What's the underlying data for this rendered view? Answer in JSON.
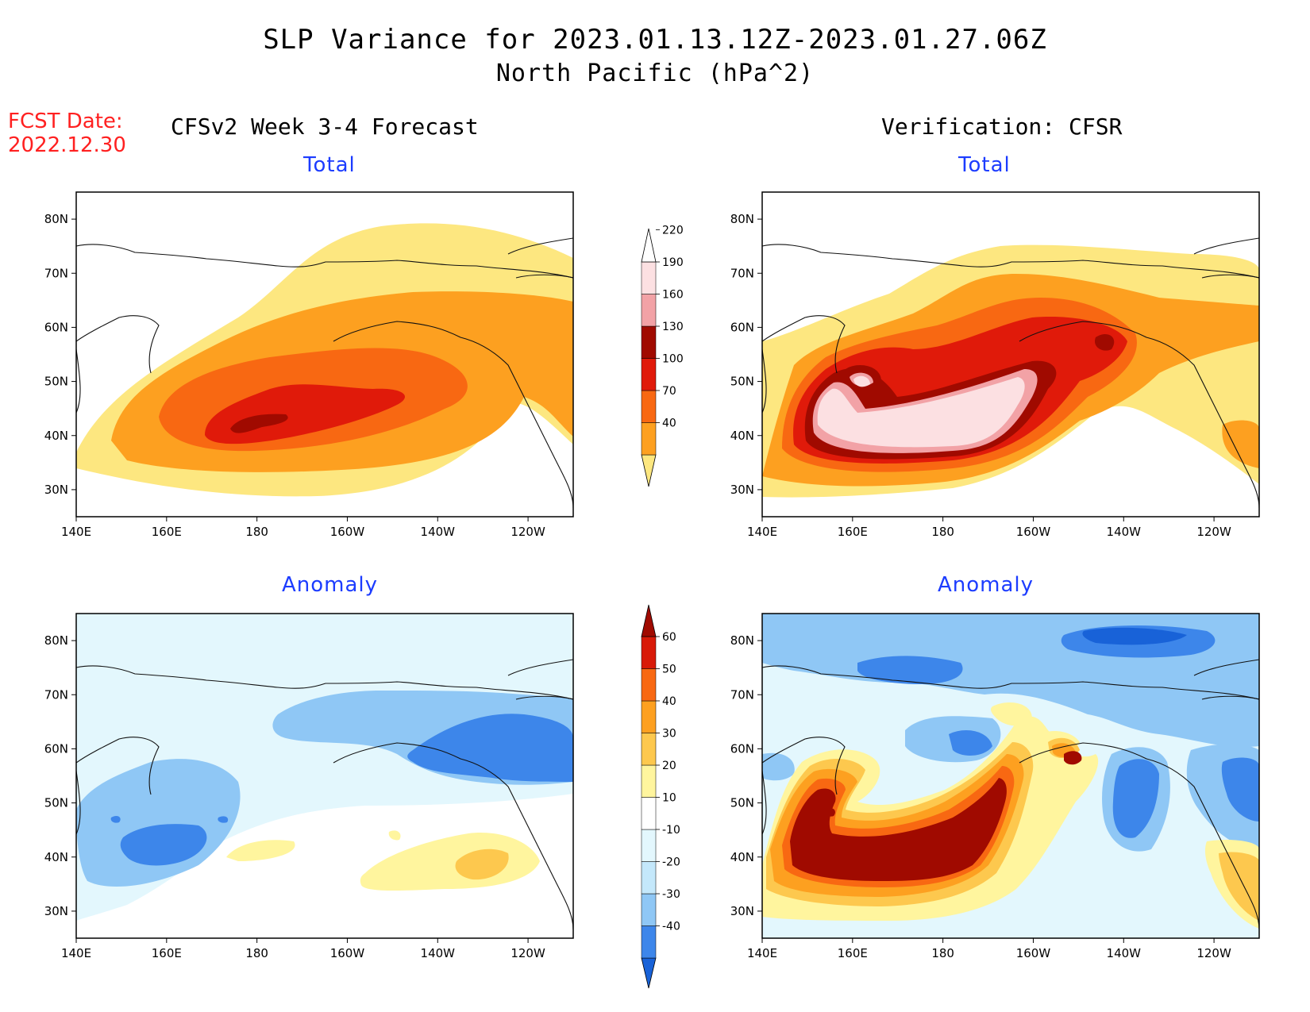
{
  "title": {
    "line1": "SLP Variance for 2023.01.13.12Z-2023.01.27.06Z",
    "line2": "North Pacific (hPa^2)"
  },
  "fcst": {
    "label": "FCST Date:",
    "date": "2022.12.30"
  },
  "columns": {
    "forecast": "CFSv2 Week 3-4 Forecast",
    "verification": "Verification: CFSR"
  },
  "panels": {
    "total_label": "Total",
    "anomaly_label": "Anomaly"
  },
  "axes": {
    "lon_ticks": [
      "140E",
      "160E",
      "180",
      "160W",
      "140W",
      "120W"
    ],
    "lat_ticks": [
      "80N",
      "70N",
      "60N",
      "50N",
      "40N",
      "30N"
    ],
    "lon_range": [
      140,
      250
    ],
    "lat_range": [
      25,
      85
    ]
  },
  "colorbars": {
    "total": {
      "labels": [
        "40",
        "70",
        "100",
        "130",
        "160",
        "190",
        "220"
      ],
      "colors": [
        "#fde780",
        "#fda020",
        "#f86812",
        "#e01a0a",
        "#a00a00",
        "#f2a2a6",
        "#fce0e2",
        "#ffffff"
      ]
    },
    "anomaly": {
      "labels": [
        "-40",
        "-30",
        "-20",
        "-10",
        "10",
        "20",
        "30",
        "40",
        "50",
        "60"
      ],
      "colors": [
        "#1862d8",
        "#3d86ea",
        "#8fc7f5",
        "#c4e8fb",
        "#e3f7fd",
        "#ffffff",
        "#fff59e",
        "#fdc84e",
        "#fda020",
        "#f86812",
        "#d81a08",
        "#a00a00"
      ]
    }
  }
}
